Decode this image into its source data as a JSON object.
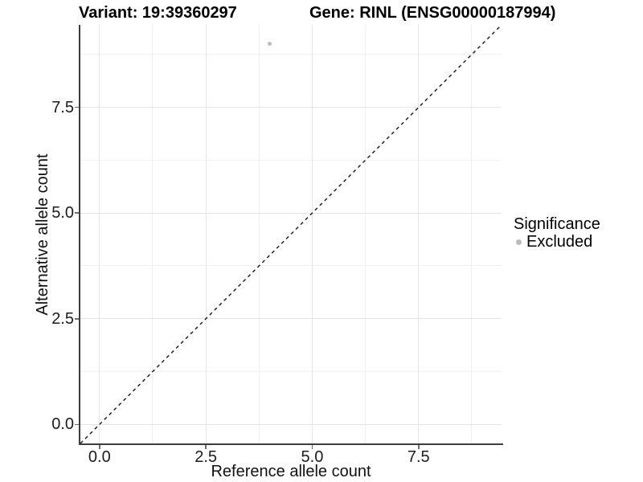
{
  "header": {
    "variant_title": "Variant: 19:39360297",
    "gene_title": "Gene: RINL (ENSG00000187994)"
  },
  "legend": {
    "title": "Significance",
    "items": [
      {
        "label": "Excluded",
        "color": "#bdbdbd"
      }
    ]
  },
  "chart_data": {
    "type": "scatter",
    "xlabel": "Reference allele count",
    "ylabel": "Alternative allele count",
    "xlim": [
      -0.45,
      9.45
    ],
    "ylim": [
      -0.45,
      9.45
    ],
    "x_major_ticks": [
      0,
      2.5,
      5,
      7.5
    ],
    "y_major_ticks": [
      0,
      2.5,
      5,
      7.5
    ],
    "x_tick_labels": [
      "0.0",
      "2.5",
      "5.0",
      "7.5"
    ],
    "y_tick_labels": [
      "0.0",
      "2.5",
      "5.0",
      "7.5"
    ],
    "x_minor_ticks": [
      1.25,
      3.75,
      6.25,
      8.75
    ],
    "y_minor_ticks": [
      1.25,
      3.75,
      6.25,
      8.75
    ],
    "grid": true,
    "legend_position": "right",
    "series": [
      {
        "name": "Excluded",
        "color": "#bdbdbd",
        "point_radius": 2.6,
        "points": [
          {
            "x": 4,
            "y": 9
          }
        ]
      }
    ],
    "reference_line": {
      "type": "abline",
      "intercept": 0,
      "slope": 1,
      "style": "dashed",
      "color": "#141414",
      "dash": "4.2 4.2",
      "width": 1.4
    }
  }
}
